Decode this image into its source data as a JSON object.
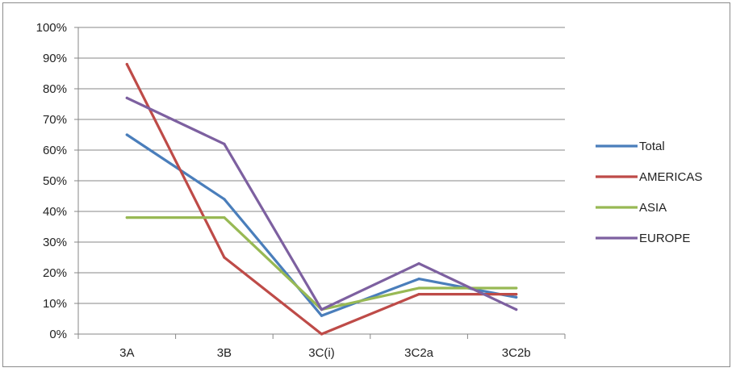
{
  "chart_data": {
    "type": "line",
    "categories": [
      "3A",
      "3B",
      "3C(i)",
      "3C2a",
      "3C2b"
    ],
    "y_tick_labels": [
      "0%",
      "10%",
      "20%",
      "30%",
      "40%",
      "50%",
      "60%",
      "70%",
      "80%",
      "90%",
      "100%"
    ],
    "ylim": [
      0,
      100
    ],
    "y_unit": "%",
    "grid": true,
    "legend_position": "right",
    "series": [
      {
        "name": "Total",
        "color": "#4a7ebb",
        "values": [
          65,
          44,
          6,
          18,
          12
        ]
      },
      {
        "name": "AMERICAS",
        "color": "#be4b48",
        "values": [
          88,
          25,
          0,
          13,
          13
        ]
      },
      {
        "name": "ASIA",
        "color": "#98b954",
        "values": [
          38,
          38,
          8,
          15,
          15
        ]
      },
      {
        "name": "EUROPE",
        "color": "#7d60a0",
        "values": [
          77,
          62,
          8,
          23,
          8
        ]
      }
    ]
  }
}
